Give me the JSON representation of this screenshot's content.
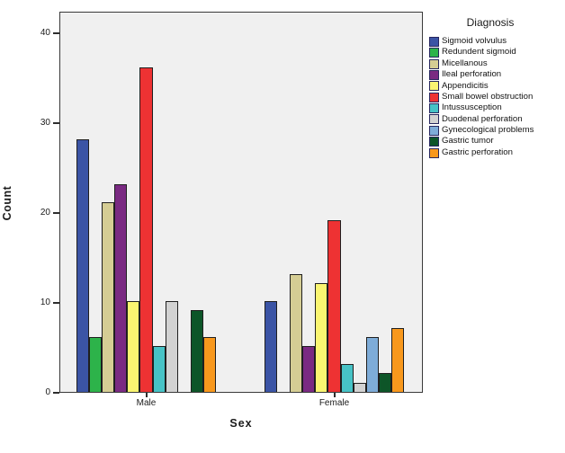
{
  "chart_data": {
    "type": "bar",
    "variant": "clustered",
    "title": "",
    "xlabel": "Sex",
    "ylabel": "Count",
    "legend_title": "Diagnosis",
    "legend_position": "right",
    "grid": false,
    "plot_bg": "#f0f0f0",
    "categories": [
      "Male",
      "Female"
    ],
    "yticks": [
      0,
      10,
      20,
      30,
      40
    ],
    "ylim": [
      0,
      42
    ],
    "series": [
      {
        "name": "Sigmoid volvulus",
        "color": "#3b54a5",
        "values": [
          28,
          10
        ]
      },
      {
        "name": "Redundent sigmoid",
        "color": "#2db34a",
        "values": [
          6,
          0
        ]
      },
      {
        "name": "Micellanous",
        "color": "#d5cd94",
        "values": [
          21,
          13
        ]
      },
      {
        "name": "Ileal perforation",
        "color": "#7a2a82",
        "values": [
          23,
          5
        ]
      },
      {
        "name": "Appendicitis",
        "color": "#faf571",
        "values": [
          10,
          12
        ]
      },
      {
        "name": "Small bowel obstruction",
        "color": "#ee3233",
        "values": [
          36,
          19
        ]
      },
      {
        "name": "Intussusception",
        "color": "#47c3c6",
        "values": [
          5,
          3
        ]
      },
      {
        "name": "Duodenal perforation",
        "color": "#d2d2d2",
        "values": [
          10,
          1
        ]
      },
      {
        "name": "Gynecological problems",
        "color": "#7eacd8",
        "values": [
          0,
          6
        ]
      },
      {
        "name": "Gastric tumor",
        "color": "#0d5528",
        "values": [
          9,
          2
        ]
      },
      {
        "name": "Gastric perforation",
        "color": "#f8981d",
        "values": [
          6,
          7
        ]
      }
    ]
  }
}
